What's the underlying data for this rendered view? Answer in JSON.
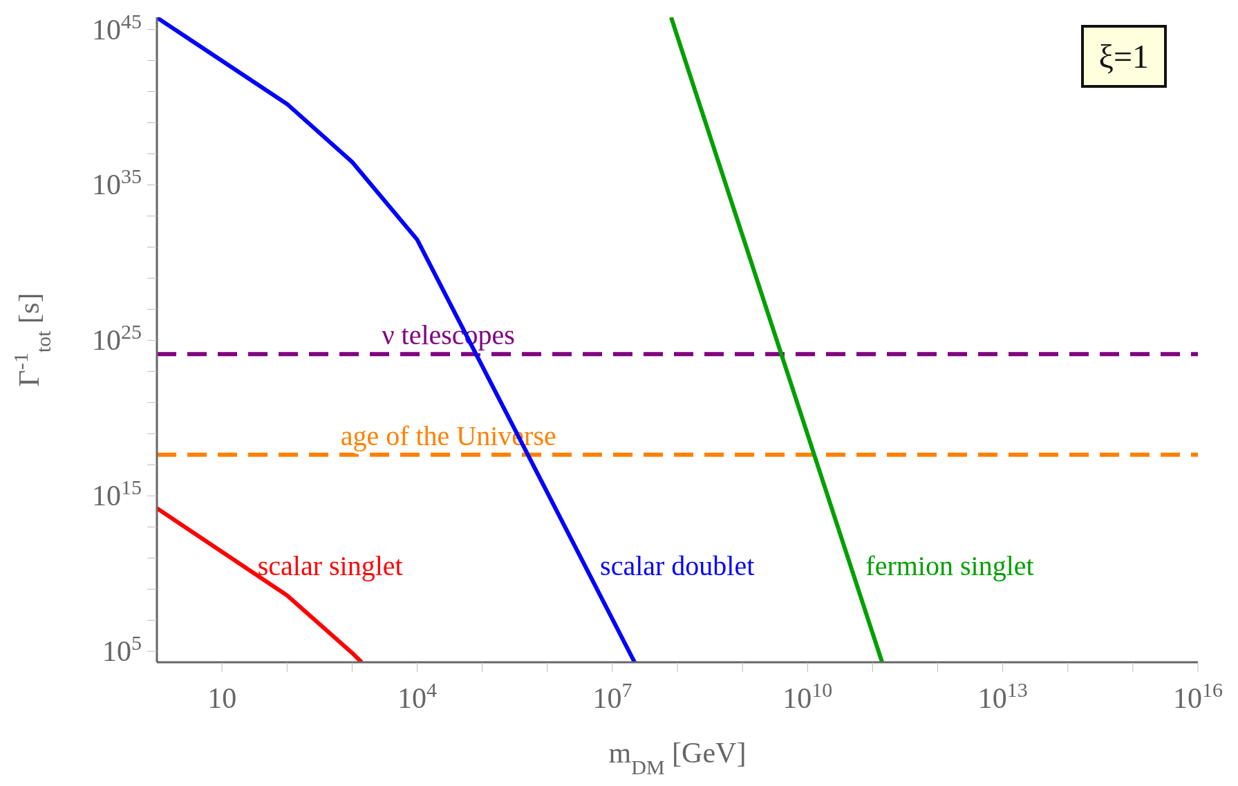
{
  "chart_data": {
    "type": "line",
    "xlabel": "m$_{DM}$ [GeV]",
    "ylabel": "Γ$^{-1}$$_{tot}$ [s]",
    "log": "xy",
    "marker": "none",
    "xlim": [
      1,
      1e+16
    ],
    "xticks": [
      {
        "value": 10,
        "label": "10"
      },
      {
        "value": 100,
        "label": null
      },
      {
        "value": 1000,
        "label": null
      },
      {
        "value": 10000.0,
        "label": "10$^{4}$"
      },
      {
        "value": 100000.0,
        "label": null
      },
      {
        "value": 1000000.0,
        "label": null
      },
      {
        "value": 10000000.0,
        "label": "10$^{7}$"
      },
      {
        "value": 100000000.0,
        "label": null
      },
      {
        "value": 1000000000.0,
        "label": null
      },
      {
        "value": 10000000000.0,
        "label": "10$^{10}$"
      },
      {
        "value": 100000000000.0,
        "label": null
      },
      {
        "value": 1000000000000.0,
        "label": null
      },
      {
        "value": 10000000000000.0,
        "label": "10$^{13}$"
      },
      {
        "value": 100000000000000.0,
        "label": null
      },
      {
        "value": 1000000000000000.0,
        "label": null
      },
      {
        "value": 1e+16,
        "label": "10$^{16}$"
      }
    ],
    "ylim": [
      20000.0,
      6e+45
    ],
    "yticks": [
      {
        "value": 100000.0,
        "label": "10$^{5}$"
      },
      {
        "value": 10000000.0,
        "label": null
      },
      {
        "value": 1000000000.0,
        "label": null
      },
      {
        "value": 100000000000.0,
        "label": null
      },
      {
        "value": 10000000000000.0,
        "label": null
      },
      {
        "value": 1000000000000000.0,
        "label": "10$^{15}$"
      },
      {
        "value": 1e+17,
        "label": null
      },
      {
        "value": 1e+19,
        "label": null
      },
      {
        "value": 1e+21,
        "label": null
      },
      {
        "value": 1e+23,
        "label": null
      },
      {
        "value": 1e+25,
        "label": "10$^{25}$"
      },
      {
        "value": 1e+27,
        "label": null
      },
      {
        "value": 1e+29,
        "label": null
      },
      {
        "value": 1e+31,
        "label": null
      },
      {
        "value": 1e+33,
        "label": null
      },
      {
        "value": 1e+35,
        "label": "10$^{35}$"
      },
      {
        "value": 1e+37,
        "label": null
      },
      {
        "value": 1e+39,
        "label": null
      },
      {
        "value": 1e+41,
        "label": null
      },
      {
        "value": 1e+43,
        "label": null
      },
      {
        "value": 1e+45,
        "label": "10$^{45}$"
      }
    ],
    "series": [
      {
        "name": "scalar singlet",
        "color": "#ff0000",
        "x": [
          1,
          100,
          1000,
          1400
        ],
        "values": [
          160000000000000.0,
          400000000.0,
          80000.0,
          20000.0
        ]
      },
      {
        "name": "scalar doublet",
        "color": "#0000ff",
        "x": [
          1,
          100,
          1000,
          10000.0,
          22000000.0
        ],
        "values": [
          5.7e+45,
          1.6e+40,
          3e+36,
          3e+31,
          20000.0
        ]
      },
      {
        "name": "fermion singlet",
        "color": "#00a000",
        "x": [
          80000000.0,
          140000000000.0
        ],
        "values": [
          6e+45,
          20000.0
        ]
      }
    ],
    "ref_lines": [
      {
        "axis": "y",
        "value": 1.3e+24,
        "label": "ν telescopes",
        "color": "#800080",
        "line_style": "dashed"
      },
      {
        "axis": "y",
        "value": 4.4e+17,
        "label": "age of the Universe",
        "color": "#ff8000",
        "line_style": "dashed"
      }
    ],
    "annotations": [
      "ξ=1"
    ]
  }
}
